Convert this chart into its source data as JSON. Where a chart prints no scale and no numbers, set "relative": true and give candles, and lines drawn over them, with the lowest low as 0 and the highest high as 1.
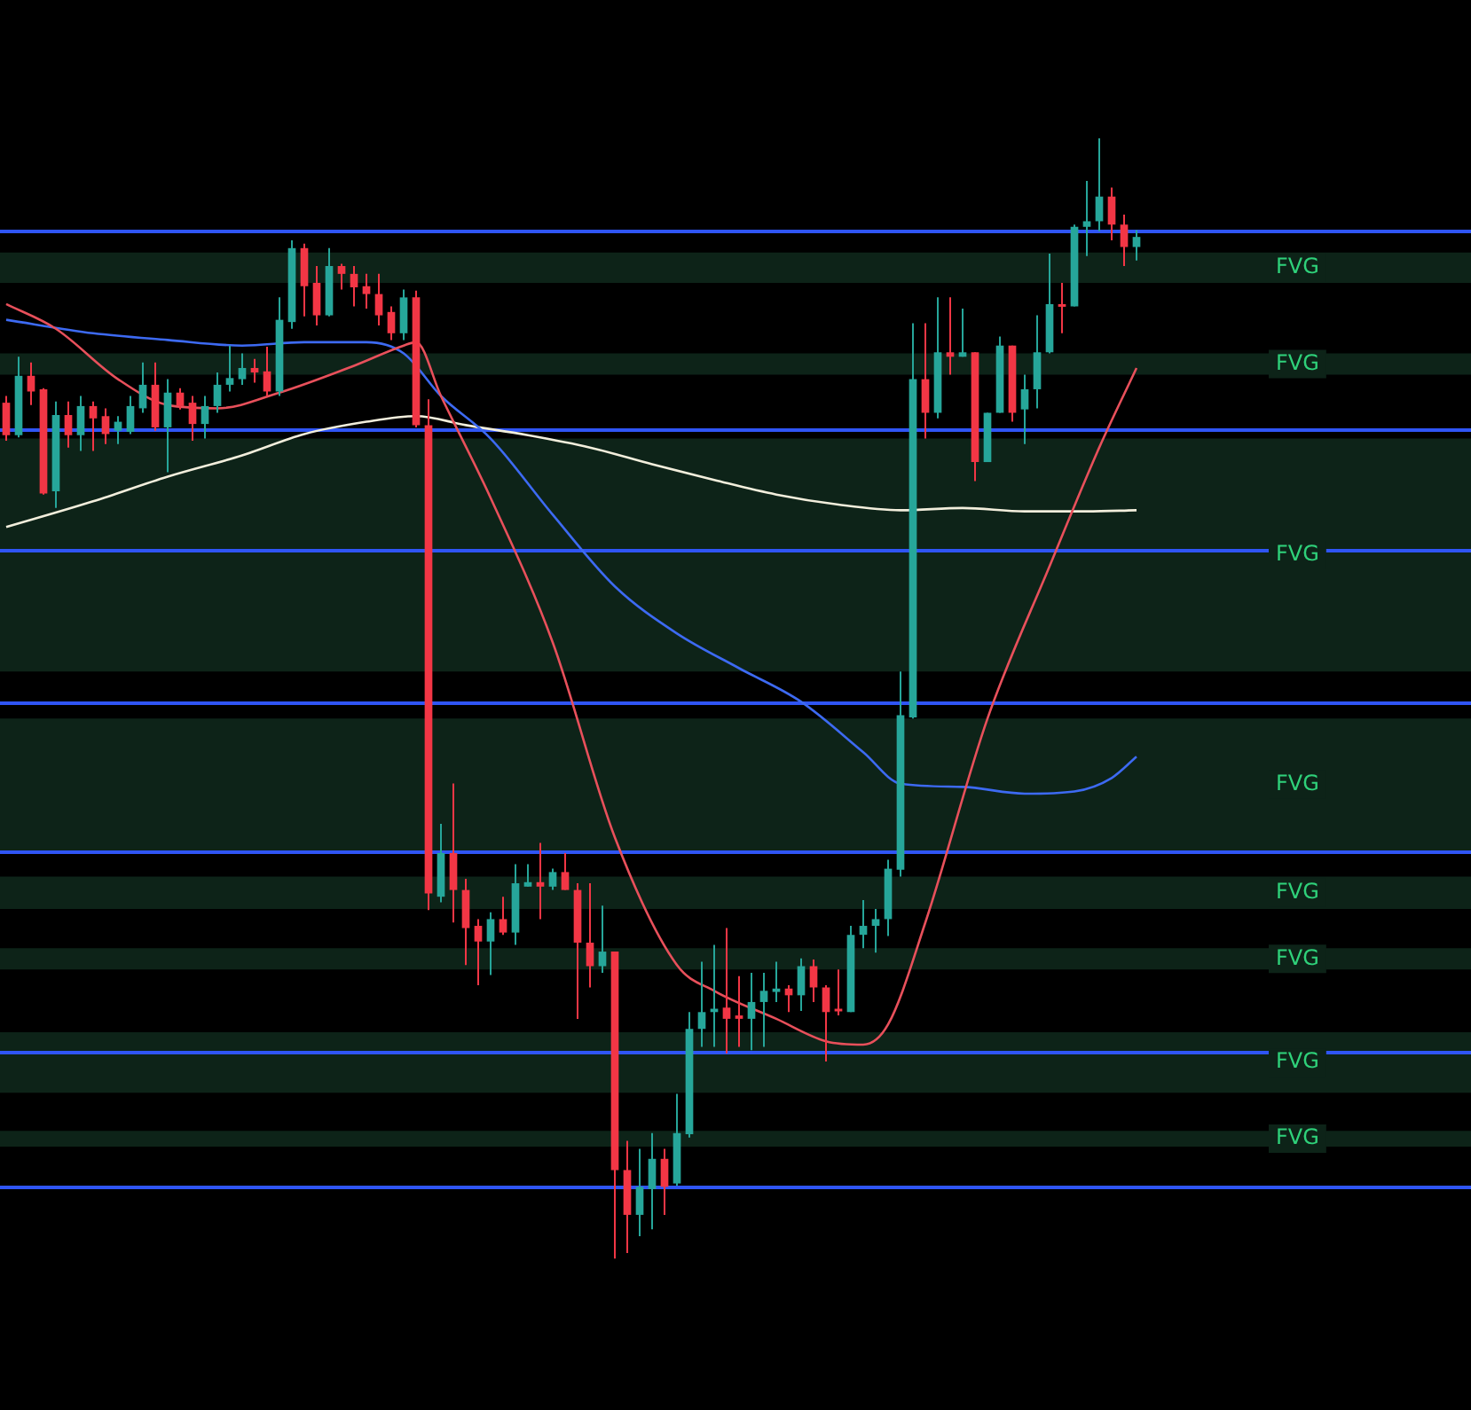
{
  "chart_data": {
    "type": "candlestick",
    "relative": true,
    "legend": false,
    "categories": [
      null,
      null,
      null,
      null,
      null,
      null,
      null,
      null,
      null,
      null,
      null,
      null,
      null,
      null,
      null,
      null,
      null,
      null,
      null,
      null,
      null,
      null,
      null,
      null,
      null,
      null,
      null,
      null,
      null,
      null,
      null,
      null,
      null,
      null,
      null,
      null,
      null,
      null,
      null,
      null,
      null,
      null,
      null,
      null,
      null,
      null,
      null,
      null,
      null,
      null,
      null,
      null,
      null,
      null,
      null,
      null,
      null,
      null,
      null,
      null,
      null,
      null,
      null,
      null,
      null,
      null,
      null,
      null,
      null,
      null,
      null,
      null,
      null,
      null,
      null,
      null,
      null,
      null,
      null,
      null,
      null,
      null,
      null,
      null,
      null,
      null,
      null,
      null,
      null,
      null,
      null,
      null
    ],
    "ohlc": [
      [
        0.764,
        0.77,
        0.73,
        0.735
      ],
      [
        0.735,
        0.805,
        0.733,
        0.788
      ],
      [
        0.788,
        0.8,
        0.762,
        0.774
      ],
      [
        0.776,
        0.777,
        0.682,
        0.683
      ],
      [
        0.685,
        0.765,
        0.67,
        0.753
      ],
      [
        0.753,
        0.765,
        0.724,
        0.735
      ],
      [
        0.735,
        0.77,
        0.721,
        0.761
      ],
      [
        0.761,
        0.765,
        0.721,
        0.75
      ],
      [
        0.752,
        0.759,
        0.727,
        0.736
      ],
      [
        0.739,
        0.752,
        0.727,
        0.747
      ],
      [
        0.738,
        0.77,
        0.736,
        0.761
      ],
      [
        0.759,
        0.8,
        0.755,
        0.78
      ],
      [
        0.78,
        0.8,
        0.739,
        0.742
      ],
      [
        0.742,
        0.785,
        0.702,
        0.773
      ],
      [
        0.773,
        0.777,
        0.758,
        0.761
      ],
      [
        0.764,
        0.77,
        0.73,
        0.745
      ],
      [
        0.745,
        0.77,
        0.732,
        0.761
      ],
      [
        0.761,
        0.791,
        0.755,
        0.78
      ],
      [
        0.78,
        0.815,
        0.774,
        0.786
      ],
      [
        0.785,
        0.808,
        0.78,
        0.795
      ],
      [
        0.795,
        0.803,
        0.782,
        0.791
      ],
      [
        0.792,
        0.814,
        0.77,
        0.774
      ],
      [
        0.774,
        0.858,
        0.77,
        0.838
      ],
      [
        0.836,
        0.909,
        0.83,
        0.902
      ],
      [
        0.902,
        0.906,
        0.841,
        0.868
      ],
      [
        0.871,
        0.886,
        0.833,
        0.842
      ],
      [
        0.842,
        0.902,
        0.841,
        0.886
      ],
      [
        0.886,
        0.888,
        0.865,
        0.879
      ],
      [
        0.879,
        0.886,
        0.85,
        0.867
      ],
      [
        0.868,
        0.879,
        0.848,
        0.861
      ],
      [
        0.861,
        0.879,
        0.833,
        0.842
      ],
      [
        0.845,
        0.85,
        0.82,
        0.826
      ],
      [
        0.826,
        0.865,
        0.82,
        0.858
      ],
      [
        0.858,
        0.864,
        0.742,
        0.744
      ],
      [
        0.744,
        0.767,
        0.311,
        0.326
      ],
      [
        0.323,
        0.388,
        0.318,
        0.362
      ],
      [
        0.362,
        0.424,
        0.3,
        0.329
      ],
      [
        0.329,
        0.339,
        0.262,
        0.295
      ],
      [
        0.297,
        0.303,
        0.244,
        0.283
      ],
      [
        0.283,
        0.309,
        0.253,
        0.303
      ],
      [
        0.303,
        0.323,
        0.289,
        0.291
      ],
      [
        0.291,
        0.352,
        0.28,
        0.335
      ],
      [
        0.332,
        0.352,
        0.332,
        0.336
      ],
      [
        0.336,
        0.371,
        0.303,
        0.332
      ],
      [
        0.332,
        0.348,
        0.329,
        0.345
      ],
      [
        0.345,
        0.362,
        0.329,
        0.329
      ],
      [
        0.329,
        0.335,
        0.214,
        0.282
      ],
      [
        0.282,
        0.335,
        0.242,
        0.261
      ],
      [
        0.261,
        0.315,
        0.255,
        0.274
      ],
      [
        0.274,
        0.274,
        0,
        0.079
      ],
      [
        0.079,
        0.105,
        0.005,
        0.039
      ],
      [
        0.039,
        0.098,
        0.02,
        0.064
      ],
      [
        0.062,
        0.112,
        0.026,
        0.089
      ],
      [
        0.089,
        0.098,
        0.039,
        0.064
      ],
      [
        0.067,
        0.147,
        0.065,
        0.112
      ],
      [
        0.111,
        0.22,
        0.108,
        0.205
      ],
      [
        0.205,
        0.265,
        0.189,
        0.22
      ],
      [
        0.22,
        0.28,
        0.189,
        0.223
      ],
      [
        0.224,
        0.295,
        0.183,
        0.214
      ],
      [
        0.217,
        0.252,
        0.189,
        0.214
      ],
      [
        0.214,
        0.255,
        0.186,
        0.229
      ],
      [
        0.229,
        0.255,
        0.189,
        0.239
      ],
      [
        0.238,
        0.265,
        0.229,
        0.241
      ],
      [
        0.241,
        0.244,
        0.22,
        0.235
      ],
      [
        0.235,
        0.268,
        0.221,
        0.261
      ],
      [
        0.261,
        0.267,
        0.229,
        0.242
      ],
      [
        0.242,
        0.244,
        0.176,
        0.22
      ],
      [
        0.223,
        0.258,
        0.217,
        0.221
      ],
      [
        0.22,
        0.297,
        0.22,
        0.289
      ],
      [
        0.289,
        0.32,
        0.277,
        0.297
      ],
      [
        0.297,
        0.312,
        0.273,
        0.303
      ],
      [
        0.303,
        0.356,
        0.288,
        0.348
      ],
      [
        0.347,
        0.524,
        0.341,
        0.485
      ],
      [
        0.483,
        0.835,
        0.482,
        0.785
      ],
      [
        0.785,
        0.835,
        0.732,
        0.755
      ],
      [
        0.755,
        0.858,
        0.75,
        0.809
      ],
      [
        0.809,
        0.858,
        0.789,
        0.805
      ],
      [
        0.805,
        0.848,
        0.805,
        0.809
      ],
      [
        0.809,
        0.809,
        0.694,
        0.711
      ],
      [
        0.711,
        0.755,
        0.711,
        0.755
      ],
      [
        0.755,
        0.823,
        0.755,
        0.815
      ],
      [
        0.815,
        0.815,
        0.747,
        0.755
      ],
      [
        0.758,
        0.789,
        0.727,
        0.776
      ],
      [
        0.776,
        0.842,
        0.759,
        0.809
      ],
      [
        0.809,
        0.897,
        0.808,
        0.852
      ],
      [
        0.852,
        0.871,
        0.826,
        0.85
      ],
      [
        0.85,
        0.923,
        0.85,
        0.921
      ],
      [
        0.921,
        0.962,
        0.895,
        0.926
      ],
      [
        0.926,
        1,
        0.917,
        0.948
      ],
      [
        0.948,
        0.956,
        0.909,
        0.923
      ],
      [
        0.923,
        0.932,
        0.886,
        0.903
      ],
      [
        0.903,
        0.918,
        0.891,
        0.912
      ]
    ],
    "colors": [
      "#f23645",
      "#26a69a",
      "#f23645",
      "#f23645",
      "#26a69a",
      "#f23645",
      "#26a69a",
      "#f23645",
      "#f23645",
      "#26a69a",
      "#26a69a",
      "#26a69a",
      "#f23645",
      "#26a69a",
      "#f23645",
      "#f23645",
      "#26a69a",
      "#26a69a",
      "#26a69a",
      "#26a69a",
      "#f23645",
      "#f23645",
      "#26a69a",
      "#26a69a",
      "#f23645",
      "#f23645",
      "#26a69a",
      "#f23645",
      "#f23645",
      "#f23645",
      "#f23645",
      "#f23645",
      "#26a69a",
      "#f23645",
      "#f23645",
      "#26a69a",
      "#f23645",
      "#f23645",
      "#f23645",
      "#26a69a",
      "#f23645",
      "#26a69a",
      "#26a69a",
      "#f23645",
      "#26a69a",
      "#f23645",
      "#f23645",
      "#f23645",
      "#26a69a",
      "#f23645",
      "#f23645",
      "#26a69a",
      "#26a69a",
      "#f23645",
      "#26a69a",
      "#26a69a",
      "#26a69a",
      "#26a69a",
      "#f23645",
      "#f23645",
      "#26a69a",
      "#26a69a",
      "#26a69a",
      "#f23645",
      "#26a69a",
      "#f23645",
      "#f23645",
      "#f23645",
      "#26a69a",
      "#26a69a",
      "#26a69a",
      "#26a69a",
      "#26a69a",
      "#26a69a",
      "#f23645",
      "#26a69a",
      "#f23645",
      "#26a69a",
      "#f23645",
      "#26a69a",
      "#26a69a",
      "#f23645",
      "#26a69a",
      "#26a69a",
      "#26a69a",
      "#f23645",
      "#26a69a",
      "#26a69a",
      "#26a69a",
      "#f23645",
      "#f23645",
      "#26a69a"
    ],
    "series": [
      {
        "type": "line",
        "color": "#e8505b",
        "values": [
          0.852,
          null,
          null,
          null,
          0.83,
          null,
          null,
          null,
          null,
          0.785,
          null,
          null,
          null,
          0.762,
          null,
          null,
          null,
          0.759,
          null,
          null,
          null,
          null,
          0.773,
          null,
          null,
          null,
          null,
          null,
          0.797,
          null,
          null,
          null,
          0.815,
          0.818,
          null,
          0.77,
          null,
          null,
          null,
          0.679,
          null,
          null,
          null,
          null,
          0.55,
          null,
          null,
          null,
          null,
          0.376,
          null,
          null,
          null,
          null,
          0.262,
          null,
          null,
          0.239,
          null,
          null,
          null,
          null,
          0.214,
          null,
          null,
          null,
          0.194,
          null,
          null,
          0.191,
          null,
          0.209,
          null,
          null,
          0.3,
          null,
          null,
          null,
          null,
          0.482,
          null,
          null,
          null,
          null,
          0.618,
          null,
          null,
          null,
          0.724,
          null,
          null,
          0.795
        ]
      },
      {
        "type": "line",
        "color": "#3d6af2",
        "values": [
          0.838,
          null,
          null,
          null,
          null,
          null,
          null,
          0.826,
          null,
          null,
          null,
          null,
          null,
          0.82,
          null,
          null,
          null,
          null,
          null,
          0.815,
          null,
          null,
          null,
          null,
          0.818,
          null,
          null,
          null,
          null,
          0.818,
          null,
          null,
          0.808,
          null,
          null,
          0.77,
          null,
          null,
          null,
          0.732,
          null,
          null,
          null,
          null,
          0.664,
          null,
          null,
          null,
          null,
          0.6,
          null,
          null,
          null,
          null,
          0.558,
          null,
          null,
          null,
          null,
          0.527,
          null,
          null,
          null,
          null,
          0.497,
          null,
          null,
          null,
          null,
          0.452,
          null,
          null,
          0.424,
          null,
          null,
          null,
          null,
          0.421,
          null,
          null,
          null,
          null,
          0.415,
          null,
          null,
          null,
          0.417,
          null,
          null,
          0.429,
          null,
          0.448
        ]
      },
      {
        "type": "line",
        "color": "#f2eedc",
        "values": [
          0.653,
          null,
          null,
          null,
          null,
          null,
          null,
          0.676,
          null,
          null,
          null,
          null,
          null,
          0.698,
          null,
          null,
          null,
          null,
          null,
          0.717,
          null,
          null,
          null,
          null,
          0.736,
          null,
          null,
          null,
          null,
          0.747,
          null,
          null,
          null,
          0.752,
          null,
          null,
          null,
          0.744,
          null,
          null,
          null,
          null,
          0.735,
          null,
          null,
          null,
          null,
          0.724,
          null,
          null,
          null,
          null,
          0.709,
          null,
          null,
          null,
          null,
          0.695,
          null,
          null,
          null,
          null,
          0.682,
          null,
          null,
          null,
          null,
          0.673,
          null,
          null,
          null,
          null,
          0.668,
          null,
          null,
          null,
          null,
          0.67,
          null,
          null,
          null,
          null,
          0.667,
          null,
          null,
          null,
          null,
          0.667,
          null,
          null,
          null,
          0.668
        ]
      }
    ],
    "ref_lines": [
      {
        "axis": "y",
        "value": 0.917,
        "color": "#2f55f5"
      },
      {
        "axis": "y",
        "value": 0.741,
        "color": "#2f55f5"
      },
      {
        "axis": "y",
        "value": 0.632,
        "color": "#2f55f5"
      },
      {
        "axis": "y",
        "value": 0.497,
        "color": "#2f55f5"
      },
      {
        "axis": "y",
        "value": 0.364,
        "color": "#2f55f5"
      },
      {
        "axis": "y",
        "value": 0.185,
        "color": "#2f55f5"
      },
      {
        "axis": "y",
        "value": 0.065,
        "color": "#2f55f5"
      }
    ],
    "bands": [
      {
        "axis": "y",
        "from": 0.871,
        "to": 0.898,
        "label": "FVG",
        "color": "#0d2318"
      },
      {
        "axis": "y",
        "from": 0.789,
        "to": 0.808,
        "label": "FVG",
        "color": "#0d2318"
      },
      {
        "axis": "y",
        "from": 0.524,
        "to": 0.732,
        "label": "FVG",
        "color": "#0d2318"
      },
      {
        "axis": "y",
        "from": 0.364,
        "to": 0.482,
        "label": "FVG",
        "color": "#0d2318"
      },
      {
        "axis": "y",
        "from": 0.312,
        "to": 0.341,
        "label": "FVG",
        "color": "#0d2318"
      },
      {
        "axis": "y",
        "from": 0.258,
        "to": 0.277,
        "label": "FVG",
        "color": "#0d2318"
      },
      {
        "axis": "y",
        "from": 0.148,
        "to": 0.202,
        "label": "FVG",
        "color": "#0d2318"
      },
      {
        "axis": "y",
        "from": 0.1,
        "to": 0.114,
        "label": "FVG",
        "color": "#0d2318"
      }
    ]
  }
}
